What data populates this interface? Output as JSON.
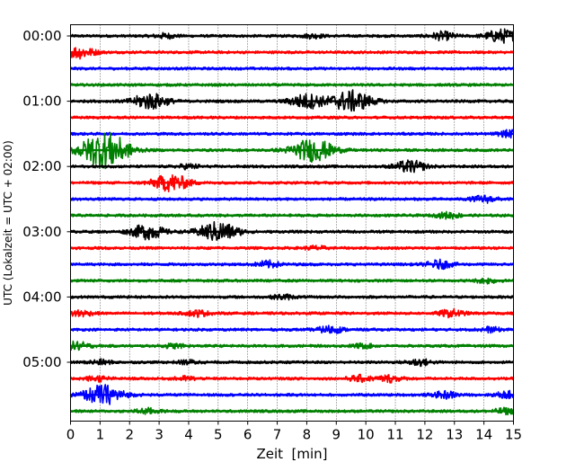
{
  "chart_data": {
    "type": "line",
    "title": "",
    "xlabel": "Zeit  [min]",
    "ylabel": "UTC (Lokalzeit = UTC + 02:00)",
    "xlim": [
      0,
      15
    ],
    "x_ticks": [
      "0",
      "1",
      "2",
      "3",
      "4",
      "5",
      "6",
      "7",
      "8",
      "9",
      "10",
      "11",
      "12",
      "13",
      "14",
      "15"
    ],
    "y_ticks": [
      "00:00",
      "01:00",
      "02:00",
      "03:00",
      "04:00",
      "05:00"
    ],
    "grid": "vertical dotted",
    "trace_interval_minutes": 15,
    "color_cycle": [
      "#000000",
      "#ff0000",
      "#0000ff",
      "#008000"
    ],
    "series": [
      {
        "start": "00:00",
        "color": "#000000",
        "events": [
          {
            "t": 3.2,
            "amp": 0.35
          },
          {
            "t": 8.2,
            "amp": 0.3
          },
          {
            "t": 12.6,
            "amp": 0.6
          },
          {
            "t": 14.6,
            "amp": 1.0
          }
        ]
      },
      {
        "start": "00:15",
        "color": "#ff0000",
        "events": [
          {
            "t": 0.3,
            "amp": 0.9
          }
        ]
      },
      {
        "start": "00:30",
        "color": "#0000ff",
        "events": []
      },
      {
        "start": "00:45",
        "color": "#008000",
        "events": []
      },
      {
        "start": "01:00",
        "color": "#000000",
        "events": [
          {
            "t": 2.7,
            "amp": 1.2
          },
          {
            "t": 8.0,
            "amp": 1.1
          },
          {
            "t": 9.5,
            "amp": 1.6
          }
        ]
      },
      {
        "start": "01:15",
        "color": "#ff0000",
        "events": []
      },
      {
        "start": "01:30",
        "color": "#0000ff",
        "events": [
          {
            "t": 14.9,
            "amp": 0.5
          }
        ]
      },
      {
        "start": "01:45",
        "color": "#008000",
        "events": [
          {
            "t": 0.9,
            "amp": 1.6
          },
          {
            "t": 1.4,
            "amp": 1.6
          },
          {
            "t": 8.2,
            "amp": 1.7
          }
        ]
      },
      {
        "start": "02:00",
        "color": "#000000",
        "events": [
          {
            "t": 4.0,
            "amp": 0.35
          },
          {
            "t": 11.5,
            "amp": 0.9
          }
        ]
      },
      {
        "start": "02:15",
        "color": "#ff0000",
        "events": [
          {
            "t": 3.4,
            "amp": 1.3
          }
        ]
      },
      {
        "start": "02:30",
        "color": "#0000ff",
        "events": [
          {
            "t": 14.0,
            "amp": 0.5
          }
        ]
      },
      {
        "start": "02:45",
        "color": "#008000",
        "events": [
          {
            "t": 12.8,
            "amp": 0.45
          }
        ]
      },
      {
        "start": "03:00",
        "color": "#000000",
        "events": [
          {
            "t": 2.6,
            "amp": 1.1
          },
          {
            "t": 5.0,
            "amp": 1.5
          }
        ]
      },
      {
        "start": "03:15",
        "color": "#ff0000",
        "events": [
          {
            "t": 8.3,
            "amp": 0.3
          }
        ]
      },
      {
        "start": "03:30",
        "color": "#0000ff",
        "events": [
          {
            "t": 6.7,
            "amp": 0.5
          },
          {
            "t": 12.5,
            "amp": 0.6
          }
        ]
      },
      {
        "start": "03:45",
        "color": "#008000",
        "events": [
          {
            "t": 14.1,
            "amp": 0.35
          }
        ]
      },
      {
        "start": "04:00",
        "color": "#000000",
        "events": [
          {
            "t": 7.2,
            "amp": 0.35
          }
        ]
      },
      {
        "start": "04:15",
        "color": "#ff0000",
        "events": [
          {
            "t": 0.3,
            "amp": 0.5
          },
          {
            "t": 4.3,
            "amp": 0.45
          },
          {
            "t": 12.9,
            "amp": 0.55
          }
        ]
      },
      {
        "start": "04:30",
        "color": "#0000ff",
        "events": [
          {
            "t": 8.8,
            "amp": 0.55
          },
          {
            "t": 14.2,
            "amp": 0.35
          }
        ]
      },
      {
        "start": "04:45",
        "color": "#008000",
        "events": [
          {
            "t": 0.2,
            "amp": 0.6
          },
          {
            "t": 3.5,
            "amp": 0.3
          },
          {
            "t": 9.9,
            "amp": 0.3
          }
        ]
      },
      {
        "start": "05:00",
        "color": "#000000",
        "events": [
          {
            "t": 1.0,
            "amp": 0.35
          },
          {
            "t": 4.0,
            "amp": 0.3
          },
          {
            "t": 11.8,
            "amp": 0.5
          }
        ]
      },
      {
        "start": "05:15",
        "color": "#ff0000",
        "events": [
          {
            "t": 0.9,
            "amp": 0.4
          },
          {
            "t": 3.9,
            "amp": 0.3
          },
          {
            "t": 9.8,
            "amp": 0.45
          },
          {
            "t": 10.8,
            "amp": 0.5
          }
        ]
      },
      {
        "start": "05:30",
        "color": "#0000ff",
        "events": [
          {
            "t": 1.1,
            "amp": 1.5
          },
          {
            "t": 12.7,
            "amp": 0.5
          },
          {
            "t": 14.8,
            "amp": 0.5
          }
        ]
      },
      {
        "start": "05:45",
        "color": "#008000",
        "events": [
          {
            "t": 2.6,
            "amp": 0.4
          },
          {
            "t": 14.7,
            "amp": 0.4
          }
        ]
      }
    ]
  }
}
